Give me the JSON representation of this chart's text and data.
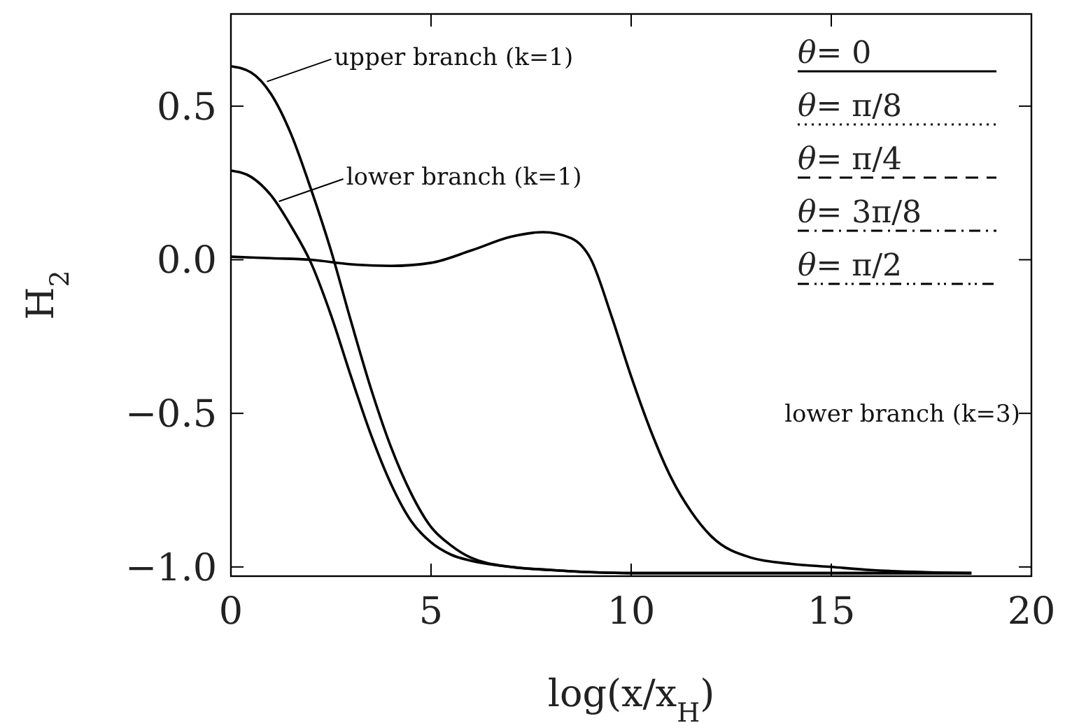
{
  "chart_data": {
    "type": "line",
    "xlabel": "log(x/x$_{H}$)",
    "ylabel": "H$_{2}$",
    "xlim": [
      0,
      20
    ],
    "ylim": [
      -1.03,
      0.8
    ],
    "xticks": [
      0,
      5,
      10,
      15,
      20
    ],
    "yticks": [
      {
        "value": -1,
        "label": "−1.0"
      },
      {
        "value": -0.5,
        "label": "−0.5"
      },
      {
        "value": 0,
        "label": "0.0"
      },
      {
        "value": 0.5,
        "label": "0.5"
      }
    ],
    "line_style": "solid",
    "annotations": [
      {
        "text": "upper branch (k=1)",
        "x": 0.9,
        "y": 0.58
      },
      {
        "text": "lower branch (k=1)",
        "x": 1.2,
        "y": 0.19
      },
      "lower branch (k=3)",
      "θ= 0",
      "θ= π/8",
      "θ= π/4",
      "θ= 3π/8",
      "θ= π/2"
    ],
    "series": [
      {
        "color": "#000000",
        "x": [
          0,
          0.5,
          1,
          1.5,
          2,
          2.5,
          3,
          3.5,
          4,
          4.5,
          5,
          5.5,
          6,
          7,
          8,
          10,
          12,
          15,
          18.5
        ],
        "values": [
          0.63,
          0.61,
          0.54,
          0.41,
          0.23,
          0.03,
          -0.2,
          -0.42,
          -0.61,
          -0.76,
          -0.87,
          -0.93,
          -0.97,
          -1.0,
          -1.01,
          -1.02,
          -1.02,
          -1.02,
          -1.02
        ]
      },
      {
        "color": "#000000",
        "x": [
          0,
          0.5,
          1,
          1.5,
          2,
          2.5,
          3,
          3.5,
          4,
          4.5,
          5,
          5.5,
          6,
          7,
          8,
          10,
          12,
          15,
          18.5
        ],
        "values": [
          0.29,
          0.27,
          0.21,
          0.11,
          -0.01,
          -0.18,
          -0.38,
          -0.57,
          -0.73,
          -0.85,
          -0.92,
          -0.96,
          -0.98,
          -1.0,
          -1.01,
          -1.02,
          -1.02,
          -1.02,
          -1.02
        ]
      },
      {
        "color": "#000000",
        "x": [
          0,
          1,
          2,
          3,
          4,
          5,
          6,
          7,
          7.8,
          8.5,
          9,
          9.5,
          10,
          10.5,
          11,
          11.5,
          12,
          13,
          14,
          15,
          16,
          18.5
        ],
        "values": [
          0.01,
          0.005,
          0,
          -0.015,
          -0.02,
          -0.01,
          0.03,
          0.075,
          0.09,
          0.07,
          0.0,
          -0.18,
          -0.38,
          -0.56,
          -0.71,
          -0.82,
          -0.9,
          -0.97,
          -0.99,
          -1.0,
          -1.01,
          -1.02
        ]
      }
    ]
  }
}
